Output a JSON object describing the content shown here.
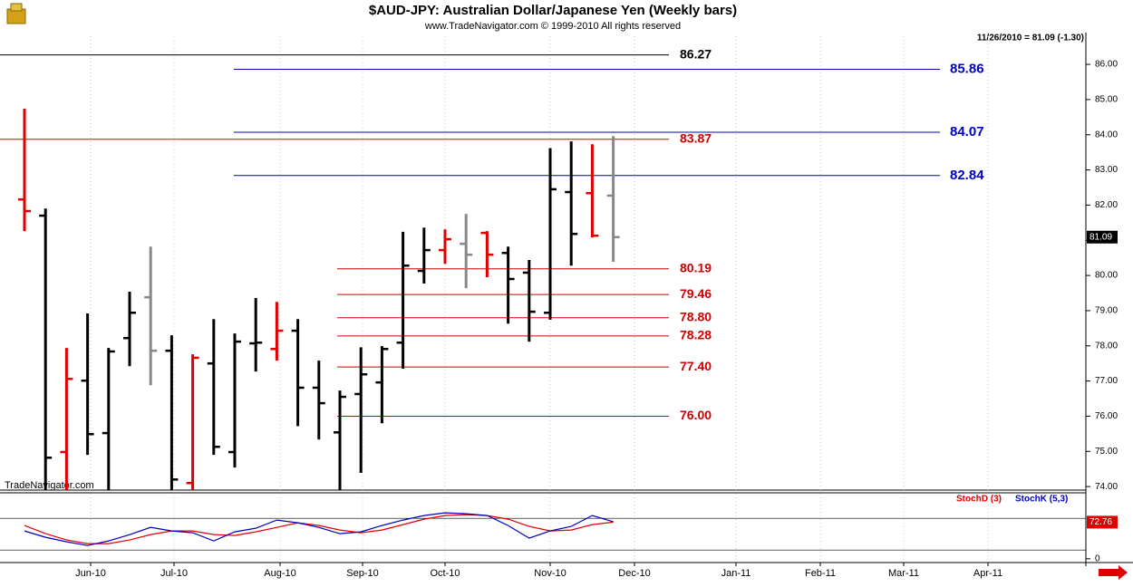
{
  "chart_data": [
    {
      "type": "ohlc",
      "title": "$AUD-JPY:  Australian Dollar/Japanese Yen  (Weekly bars)",
      "subtitle": "www.TradeNavigator.com © 1999-2010 All rights reserved",
      "header": "11/26/2010 = 81.09 (-1.30)",
      "watermark": "TradeNavigator.com",
      "ylim": [
        73.9,
        86.8
      ],
      "yticks": [
        {
          "value": 74,
          "label": "74.00"
        },
        {
          "value": 75,
          "label": "75.00"
        },
        {
          "value": 76,
          "label": "76.00"
        },
        {
          "value": 77,
          "label": "77.00"
        },
        {
          "value": 78,
          "label": "78.00"
        },
        {
          "value": 79,
          "label": "79.00"
        },
        {
          "value": 80,
          "label": "80.00"
        },
        {
          "value": 81,
          "label": "81.00"
        },
        {
          "value": 82,
          "label": "82.00"
        },
        {
          "value": 83,
          "label": "83.00"
        },
        {
          "value": 84,
          "label": "84.00"
        },
        {
          "value": 85,
          "label": "85.00"
        },
        {
          "value": 86,
          "label": "86.00"
        }
      ],
      "bars": {
        "open": [
          82.16,
          81.7,
          74.98,
          77.01,
          75.52,
          78.22,
          79.38,
          77.86,
          74.1,
          77.5,
          74.98,
          78.07,
          77.91,
          78.43,
          76.81,
          75.54,
          76.63,
          76.96,
          78.09,
          80.13,
          80.72,
          80.9,
          81.21,
          80.64,
          80.08,
          78.94,
          82.37,
          82.34,
          82.27
        ],
        "high": [
          84.74,
          81.9,
          77.94,
          78.92,
          77.94,
          79.54,
          80.82,
          78.3,
          77.76,
          78.76,
          78.35,
          79.36,
          79.25,
          78.76,
          77.58,
          76.73,
          77.96,
          77.99,
          81.24,
          81.36,
          81.31,
          81.75,
          81.26,
          80.82,
          80.44,
          83.62,
          83.81,
          83.73,
          83.96
        ],
        "low": [
          81.26,
          73.5,
          73.6,
          74.9,
          73.7,
          77.42,
          76.88,
          73.6,
          73.7,
          74.9,
          74.54,
          77.27,
          77.58,
          75.72,
          75.34,
          73.7,
          74.39,
          75.8,
          77.35,
          79.77,
          80.33,
          79.64,
          79.95,
          78.63,
          78.12,
          78.74,
          80.28,
          81.08,
          80.39
        ],
        "close": [
          81.83,
          74.82,
          77.06,
          75.49,
          77.84,
          78.94,
          77.86,
          74.2,
          77.66,
          75.13,
          78.12,
          78.09,
          78.43,
          76.81,
          76.37,
          76.55,
          77.19,
          77.91,
          80.28,
          80.72,
          81.03,
          80.59,
          80.59,
          79.9,
          78.97,
          82.45,
          81.18,
          81.13,
          81.09
        ],
        "colors": [
          "#e00000",
          "#000000",
          "#e00000",
          "#000000",
          "#000000",
          "#000000",
          "#888888",
          "#000000",
          "#e00000",
          "#000000",
          "#000000",
          "#000000",
          "#e00000",
          "#000000",
          "#000000",
          "#000000",
          "#000000",
          "#000000",
          "#000000",
          "#000000",
          "#e00000",
          "#888888",
          "#e00000",
          "#000000",
          "#000000",
          "#000000",
          "#000000",
          "#e00000",
          "#888888"
        ]
      },
      "levels": [
        {
          "value": 86.27,
          "color": "#000000"
        },
        {
          "value": 85.86,
          "color": "#0000c0"
        },
        {
          "value": 84.07,
          "color": "#0000c0"
        },
        {
          "value": 83.87,
          "color": "#d00000"
        },
        {
          "value": 82.84,
          "color": "#0000c0"
        },
        {
          "value": 80.19,
          "color": "#d00000"
        },
        {
          "value": 79.46,
          "color": "#d00000"
        },
        {
          "value": 78.8,
          "label": "78.80",
          "color": "#d00000"
        },
        {
          "value": 78.28,
          "color": "#d00000"
        },
        {
          "value": 77.4,
          "label": "77.40",
          "color": "#d00000"
        },
        {
          "value": 76,
          "label": "76.00",
          "color": "#d00000"
        }
      ]
    },
    {
      "type": "line",
      "ylim": [
        -2,
        126.6
      ],
      "yticks": [
        0
      ],
      "levels": [
        80,
        20
      ],
      "xticks": [
        "Jun-10",
        "Jul-10",
        "Aug-10",
        "Sep-10",
        "Oct-10",
        "Nov-10",
        "Dec-10",
        "Jan-11",
        "Feb-11",
        "Mar-11",
        "Apr-11"
      ],
      "series": [
        {
          "name": "StochD (3)",
          "color": "#e00000",
          "values": [
            66.4,
            51,
            39,
            32.1,
            32.1,
            39,
            49.2,
            56.1,
            56.1,
            49.2,
            47.5,
            54.4,
            62.9,
            71.5,
            66.4,
            57.8,
            52.7,
            57.8,
            68.1,
            78.4,
            85.2,
            87,
            85.2,
            78.4,
            64.7,
            56.1,
            57.8,
            68.1,
            72.76
          ]
        },
        {
          "name": "StochK (5,3)",
          "color": "#0000c0",
          "values": [
            56.1,
            44.1,
            35.5,
            28.6,
            37.2,
            49.2,
            62.9,
            56.1,
            52.7,
            37.2,
            54.4,
            61.2,
            76.7,
            71.5,
            62.9,
            50.9,
            54.4,
            66.4,
            76.7,
            85.2,
            90.4,
            88.7,
            85.2,
            66.4,
            42.4,
            56.1,
            64.7,
            85.2,
            73.5
          ]
        }
      ]
    }
  ]
}
